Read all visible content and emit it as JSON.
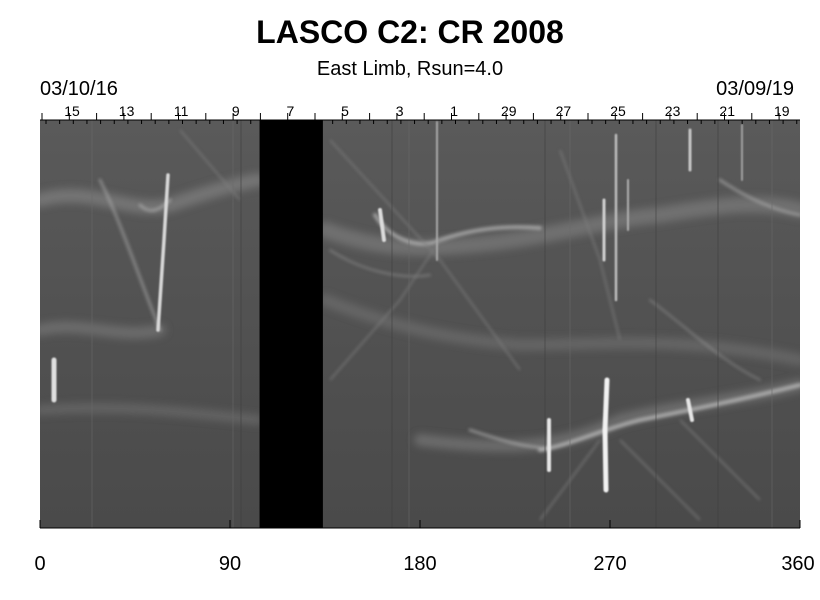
{
  "title": "LASCO C2: CR 2008",
  "subtitle": "East Limb, Rsun=4.0",
  "dates": {
    "start": "03/10/16",
    "end": "03/09/19"
  },
  "day_ticks": [
    "15",
    "13",
    "11",
    "9",
    "7",
    "5",
    "3",
    "1",
    "29",
    "27",
    "25",
    "23",
    "21",
    "19"
  ],
  "x_axis": {
    "range": [
      0,
      360
    ],
    "tick_labels": [
      "0",
      "90",
      "180",
      "270",
      "360"
    ]
  },
  "data_gap": {
    "from_deg": 104,
    "to_deg": 134
  },
  "colors": {
    "background": "#ffffff",
    "image_base": "#565656",
    "gap": "#000000"
  }
}
